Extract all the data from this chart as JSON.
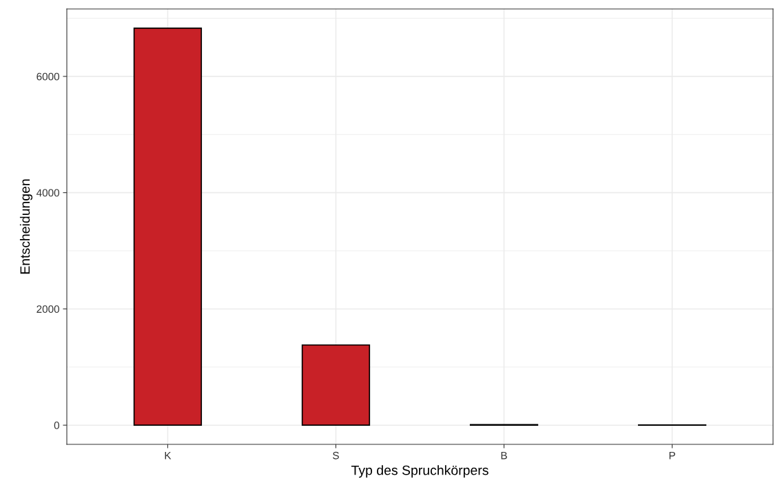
{
  "chart_data": {
    "type": "bar",
    "xlabel": "Typ des Spruchkörpers",
    "ylabel": "Entscheidungen",
    "categories": [
      "K",
      "S",
      "B",
      "P"
    ],
    "values": [
      6830,
      1380,
      10,
      5
    ],
    "color": "#c82127",
    "ylim": [
      -330,
      7160
    ],
    "yticks": [
      0,
      2000,
      4000,
      6000
    ],
    "grid": true
  }
}
